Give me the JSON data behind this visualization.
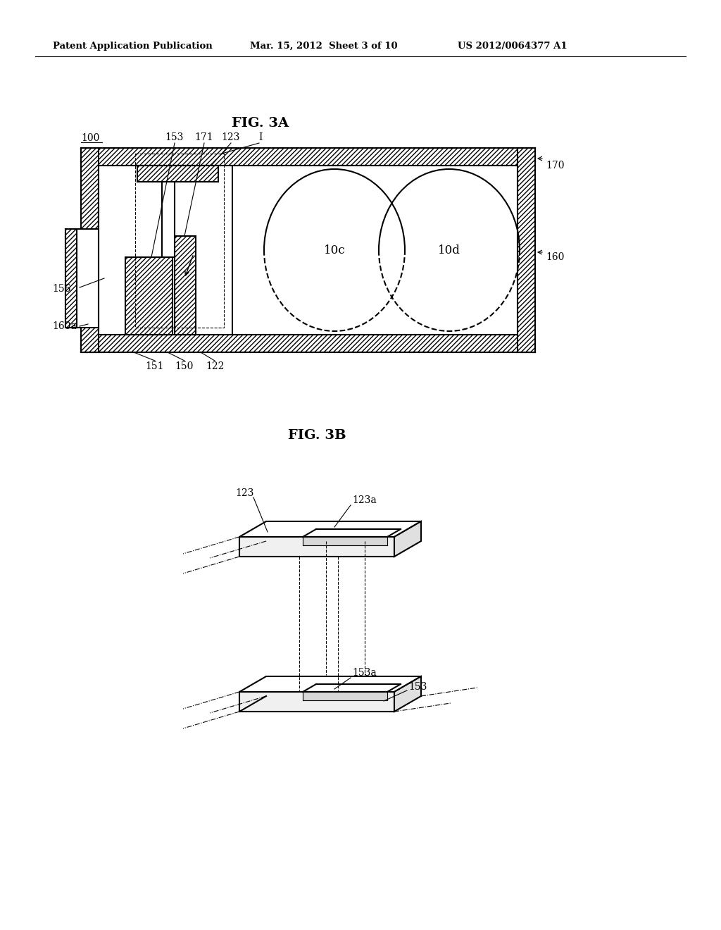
{
  "bg_color": "#ffffff",
  "header_left": "Patent Application Publication",
  "header_center": "Mar. 15, 2012  Sheet 3 of 10",
  "header_right": "US 2012/0064377 A1",
  "fig3a_title": "FIG. 3A",
  "fig3b_title": "FIG. 3B",
  "label_100": "100",
  "label_170": "170",
  "label_160": "160",
  "label_160a": "160a",
  "label_156": "156",
  "label_153": "153",
  "label_171": "171",
  "label_123": "123",
  "label_I": "I",
  "label_10c": "10c",
  "label_10d": "10d",
  "label_151": "151",
  "label_150": "150",
  "label_122": "122",
  "label_123b": "123",
  "label_123a": "123a",
  "label_153a": "153a",
  "label_153b": "153"
}
